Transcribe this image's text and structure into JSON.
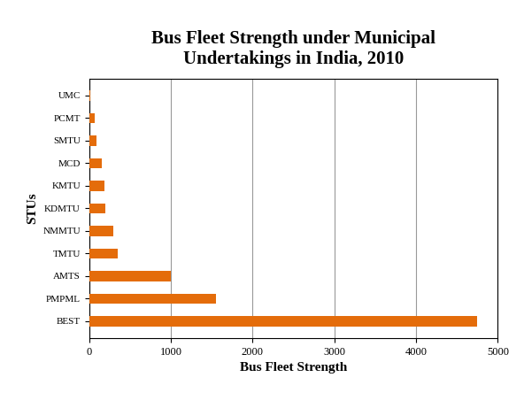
{
  "chart_data": {
    "type": "bar",
    "orientation": "horizontal",
    "title": "Bus Fleet Strength under Municipal\nUndertakings in India, 2010",
    "x_label": "Bus Fleet Strength",
    "y_label": "STUs",
    "categories": [
      "UMC",
      "PCMT",
      "SMTU",
      "MCD",
      "KMTU",
      "KDMTU",
      "NMMTU",
      "TMTU",
      "AMTS",
      "PMPML",
      "BEST"
    ],
    "values": [
      20,
      70,
      90,
      160,
      190,
      200,
      300,
      350,
      1000,
      1550,
      4750
    ],
    "color": "#e46c0a",
    "xlim": [
      0,
      5000
    ],
    "xticks": [
      0,
      1000,
      2000,
      3000,
      4000,
      5000
    ],
    "grid": true
  }
}
